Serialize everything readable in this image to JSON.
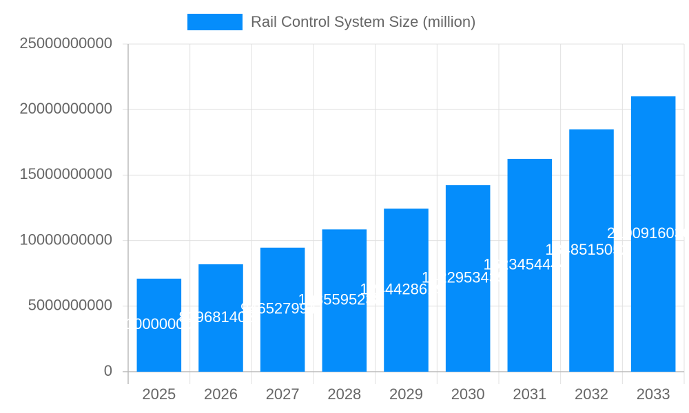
{
  "chart_data": {
    "type": "bar",
    "categories": [
      "2025",
      "2026",
      "2027",
      "2028",
      "2029",
      "2030",
      "2031",
      "2032",
      "2033"
    ],
    "series": [
      {
        "name": "Rail Control System Size (million)",
        "color": "#058dfb",
        "values": [
          7100000000,
          8196814080,
          9465279941,
          10855952387,
          12444286196,
          14229534355,
          16234544443,
          18485150521,
          21009160300
        ]
      }
    ],
    "ylim": [
      0,
      25000000000
    ],
    "yticks": [
      0,
      5000000000,
      10000000000,
      15000000000,
      20000000000,
      25000000000
    ],
    "grid": true,
    "legend": "top"
  }
}
